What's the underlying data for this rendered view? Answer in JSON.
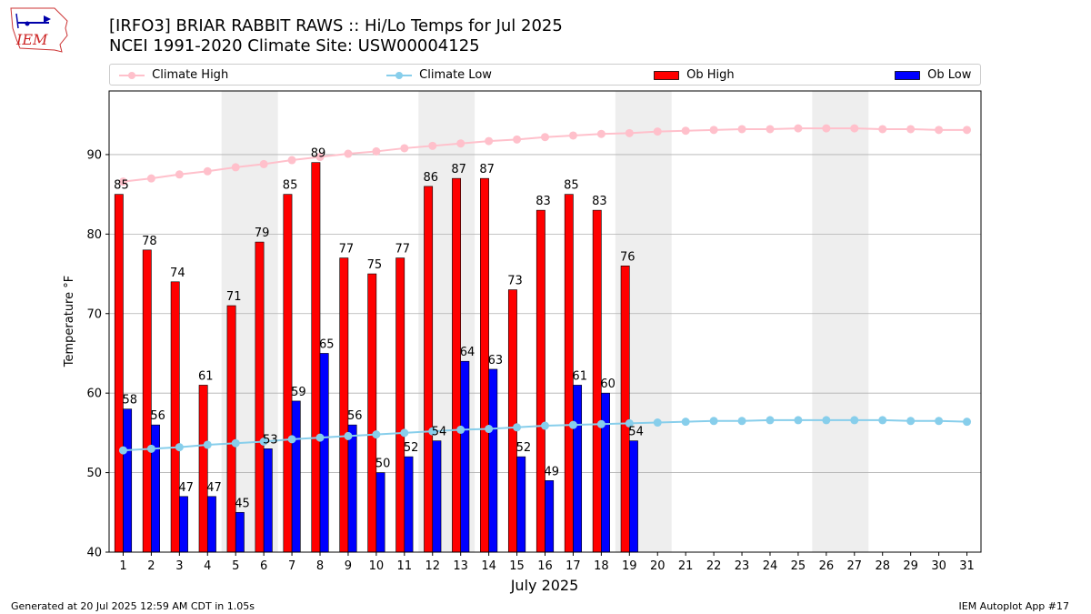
{
  "header": {
    "logo_text": "IEM",
    "title_line1": "[IRFO3] BRIAR RABBIT RAWS :: Hi/Lo Temps for Jul 2025",
    "title_line2": "NCEI 1991-2020 Climate Site: USW00004125"
  },
  "legend": {
    "climate_high": "Climate High",
    "climate_low": "Climate Low",
    "ob_high": "Ob High",
    "ob_low": "Ob Low"
  },
  "footer": {
    "generated": "Generated at 20 Jul 2025 12:59 AM CDT in 1.05s",
    "app": "IEM Autoplot App #17"
  },
  "colors": {
    "ob_high": "#ff0000",
    "ob_low": "#0000ff",
    "climate_high": "#ffc0cb",
    "climate_low": "#87ceeb",
    "weekend_shade": "#eeeeee",
    "grid": "#b0b0b0"
  },
  "chart_data": {
    "type": "bar",
    "title": "[IRFO3] BRIAR RABBIT RAWS :: Hi/Lo Temps for Jul 2025",
    "subtitle": "NCEI 1991-2020 Climate Site: USW00004125",
    "xlabel": "July 2025",
    "ylabel": "Temperature °F",
    "ylim": [
      40,
      98
    ],
    "xlim": [
      0.5,
      31.5
    ],
    "yticks": [
      40,
      50,
      60,
      70,
      80,
      90
    ],
    "grid": "horizontal",
    "legend_position": "top",
    "days": [
      1,
      2,
      3,
      4,
      5,
      6,
      7,
      8,
      9,
      10,
      11,
      12,
      13,
      14,
      15,
      16,
      17,
      18,
      19,
      20,
      21,
      22,
      23,
      24,
      25,
      26,
      27,
      28,
      29,
      30,
      31
    ],
    "shaded_days": [
      [
        5,
        6
      ],
      [
        12,
        13
      ],
      [
        19,
        20
      ],
      [
        26,
        27
      ]
    ],
    "series": [
      {
        "name": "Ob High",
        "kind": "bar",
        "values": [
          85,
          78,
          74,
          61,
          71,
          79,
          85,
          89,
          77,
          75,
          77,
          86,
          87,
          87,
          73,
          83,
          85,
          83,
          76
        ]
      },
      {
        "name": "Ob Low",
        "kind": "bar",
        "values": [
          58,
          56,
          47,
          47,
          45,
          53,
          59,
          65,
          56,
          50,
          52,
          54,
          64,
          63,
          52,
          49,
          61,
          60,
          54
        ]
      },
      {
        "name": "Climate High",
        "kind": "line",
        "values": [
          86.6,
          87.0,
          87.5,
          87.9,
          88.4,
          88.8,
          89.3,
          89.7,
          90.1,
          90.4,
          90.8,
          91.1,
          91.4,
          91.7,
          91.9,
          92.2,
          92.4,
          92.6,
          92.7,
          92.9,
          93.0,
          93.1,
          93.2,
          93.2,
          93.3,
          93.3,
          93.3,
          93.2,
          93.2,
          93.1,
          93.1
        ]
      },
      {
        "name": "Climate Low",
        "kind": "line",
        "values": [
          52.8,
          53.0,
          53.2,
          53.5,
          53.7,
          53.9,
          54.2,
          54.4,
          54.6,
          54.8,
          55.0,
          55.2,
          55.4,
          55.5,
          55.7,
          55.9,
          56.0,
          56.1,
          56.2,
          56.3,
          56.4,
          56.5,
          56.5,
          56.6,
          56.6,
          56.6,
          56.6,
          56.6,
          56.5,
          56.5,
          56.4
        ]
      }
    ]
  }
}
